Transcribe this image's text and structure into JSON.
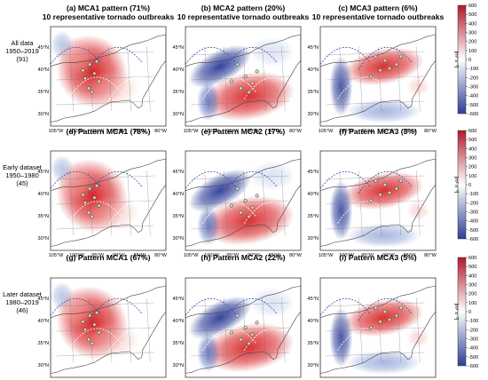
{
  "rows": [
    {
      "label": [
        "All data",
        "1950–2019",
        "(91)"
      ],
      "panels": [
        {
          "title": "(a) MCA1 pattern (71%)",
          "subtitle": "10 representative tornado outbreaks",
          "pattern": 1
        },
        {
          "title": "(b) MCA2 pattern (20%)",
          "subtitle": "10 representative tornado outbreaks",
          "pattern": 2
        },
        {
          "title": "(c) MCA3 pattern (6%)",
          "subtitle": "10 representative tornado outbreaks",
          "pattern": 3
        }
      ]
    },
    {
      "label": [
        "Early dataset",
        "1950–1980",
        "(45)"
      ],
      "panels": [
        {
          "title": "(d) Pattern MCA1 (78%)",
          "subtitle": "",
          "pattern": 1
        },
        {
          "title": "(e) Pattern MCA2 (17%)",
          "subtitle": "",
          "pattern": 2
        },
        {
          "title": "(f) Pattern MCA3 (3%)",
          "subtitle": "",
          "pattern": 3
        }
      ]
    },
    {
      "label": [
        "Later dataset",
        "1980–2019",
        "(46)"
      ],
      "panels": [
        {
          "title": "(g) Pattern MCA1 (67%)",
          "subtitle": "",
          "pattern": 1
        },
        {
          "title": "(h) Pattern MCA2 (22%)",
          "subtitle": "",
          "pattern": 2
        },
        {
          "title": "(i) Pattern MCA3 (5%)",
          "subtitle": "",
          "pattern": 3
        }
      ]
    }
  ],
  "chart_data": {
    "type": "heatmap",
    "xticks": [
      "105°W",
      "100°W",
      "95°W",
      "90°W",
      "85°W",
      "80°W"
    ],
    "yticks": [
      "30°N",
      "35°N",
      "40°N",
      "45°N"
    ],
    "colorbar": {
      "ticks": [
        600,
        500,
        400,
        300,
        200,
        100,
        0,
        -100,
        -200,
        -300,
        -400,
        -500,
        -600
      ],
      "range": [
        -600,
        600
      ],
      "label": "[m² s⁻²]",
      "colors": [
        "#b2182b",
        "#ffffff",
        "#2c3d96"
      ]
    },
    "panels": 9
  }
}
